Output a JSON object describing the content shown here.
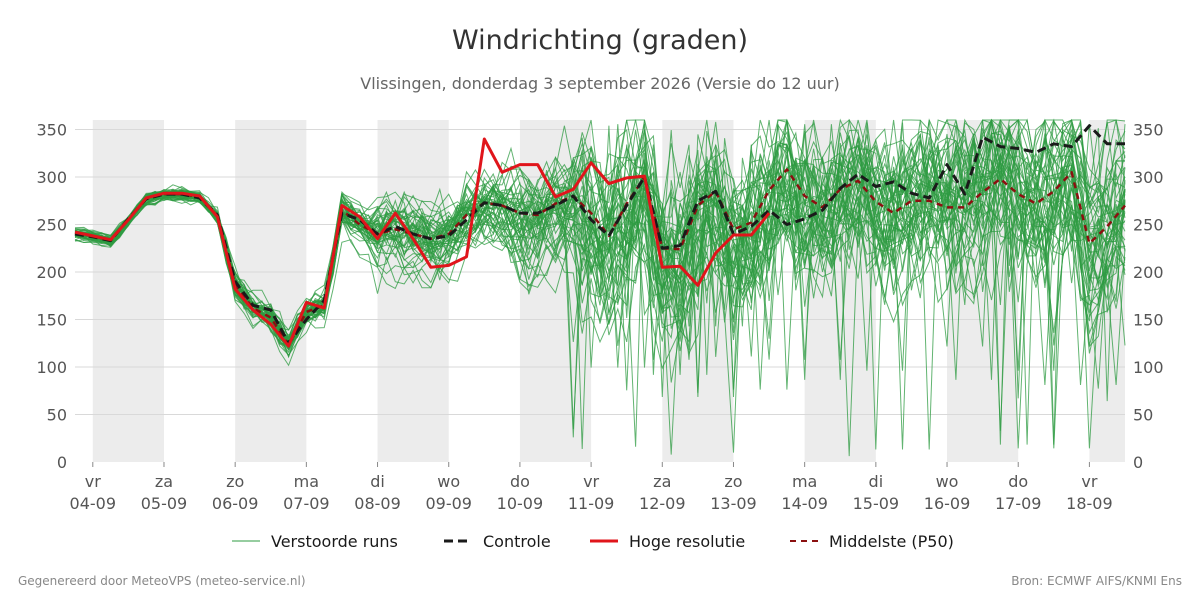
{
  "title": "Windrichting (graden)",
  "subtitle": "Vlissingen, donderdag  3 september 2026 (Versie do 12 uur)",
  "footer_left": "Gegenereerd door MeteoVPS (meteo-service.nl)",
  "footer_right": "Bron: ECMWF AIFS/KNMI Ens",
  "colors": {
    "ensemble": "#2e9b41",
    "control": "#1a1a1a",
    "hires": "#e0151b",
    "median": "#8b1010",
    "weekend_band": "#ececec",
    "grid": "#d9d9d9"
  },
  "chart_data": {
    "type": "line",
    "title": "Windrichting (graden)",
    "ylabel": "",
    "xlabel": "",
    "ylim": [
      0,
      360
    ],
    "yticks": [
      0,
      50,
      100,
      150,
      200,
      250,
      300,
      350
    ],
    "xlim": [
      -0.25,
      14.5
    ],
    "x_unit": "days from 04-09 00:00",
    "x_ticks": [
      {
        "x": 0,
        "day": "vr",
        "date": "04-09"
      },
      {
        "x": 1,
        "day": "za",
        "date": "05-09"
      },
      {
        "x": 2,
        "day": "zo",
        "date": "06-09"
      },
      {
        "x": 3,
        "day": "ma",
        "date": "07-09"
      },
      {
        "x": 4,
        "day": "di",
        "date": "08-09"
      },
      {
        "x": 5,
        "day": "wo",
        "date": "09-09"
      },
      {
        "x": 6,
        "day": "do",
        "date": "10-09"
      },
      {
        "x": 7,
        "day": "vr",
        "date": "11-09"
      },
      {
        "x": 8,
        "day": "za",
        "date": "12-09"
      },
      {
        "x": 9,
        "day": "zo",
        "date": "13-09"
      },
      {
        "x": 10,
        "day": "ma",
        "date": "14-09"
      },
      {
        "x": 11,
        "day": "di",
        "date": "15-09"
      },
      {
        "x": 12,
        "day": "wo",
        "date": "16-09"
      },
      {
        "x": 13,
        "day": "do",
        "date": "17-09"
      },
      {
        "x": 14,
        "day": "vr",
        "date": "18-09"
      }
    ],
    "shaded_bands": [
      [
        0,
        1
      ],
      [
        2,
        3
      ],
      [
        4,
        5
      ],
      [
        6,
        7
      ],
      [
        8,
        9
      ],
      [
        10,
        11
      ],
      [
        12,
        13
      ],
      [
        14,
        14.5
      ]
    ],
    "grid": true,
    "legend_position": "bottom",
    "legend": [
      {
        "key": "ensemble",
        "label": "Verstoorde runs"
      },
      {
        "key": "control",
        "label": "Controle"
      },
      {
        "key": "hires",
        "label": "Hoge resolutie"
      },
      {
        "key": "median",
        "label": "Middelste (P50)"
      }
    ],
    "series": [
      {
        "name": "Hoge resolutie",
        "key": "hires",
        "x": [
          -0.25,
          0,
          0.25,
          0.5,
          0.75,
          1,
          1.25,
          1.5,
          1.75,
          2,
          2.25,
          2.5,
          2.75,
          3,
          3.25,
          3.5,
          3.75,
          4,
          4.25,
          4.5,
          4.75,
          5,
          5.25,
          5.5,
          5.75,
          6,
          6.25,
          6.5,
          6.75,
          7,
          7.25,
          7.5,
          7.75,
          8,
          8.25,
          8.5,
          8.75,
          9,
          9.25,
          9.5
        ],
        "y": [
          242,
          238,
          234,
          255,
          278,
          283,
          283,
          280,
          258,
          182,
          160,
          145,
          122,
          168,
          162,
          270,
          258,
          235,
          262,
          235,
          205,
          207,
          216,
          340,
          305,
          313,
          313,
          279,
          287,
          315,
          293,
          299,
          301,
          205,
          206,
          186,
          220,
          239,
          239,
          262
        ]
      },
      {
        "name": "Controle",
        "key": "control",
        "x": [
          -0.25,
          0,
          0.25,
          0.5,
          0.75,
          1,
          1.25,
          1.5,
          1.75,
          2,
          2.25,
          2.5,
          2.75,
          3,
          3.25,
          3.5,
          3.75,
          4,
          4.25,
          4.5,
          4.75,
          5,
          5.25,
          5.5,
          5.75,
          6,
          6.25,
          6.5,
          6.75,
          7,
          7.25,
          7.5,
          7.75,
          8,
          8.25,
          8.5,
          8.75,
          9,
          9.25,
          9.5,
          9.75,
          10,
          10.25,
          10.5,
          10.75,
          11,
          11.25,
          11.5,
          11.75,
          12,
          12.25,
          12.5,
          12.75,
          13,
          13.25,
          13.5,
          13.75,
          14,
          14.25,
          14.5
        ],
        "y": [
          240,
          237,
          233,
          256,
          277,
          282,
          282,
          278,
          260,
          190,
          165,
          160,
          125,
          150,
          170,
          262,
          255,
          240,
          248,
          240,
          235,
          238,
          255,
          273,
          270,
          262,
          262,
          270,
          280,
          255,
          238,
          270,
          300,
          225,
          228,
          275,
          285,
          240,
          248,
          265,
          250,
          256,
          265,
          288,
          303,
          290,
          295,
          283,
          278,
          313,
          282,
          342,
          332,
          330,
          326,
          335,
          332,
          354,
          335,
          335
        ]
      },
      {
        "name": "Middelste (P50)",
        "key": "median",
        "x": [
          -0.25,
          0,
          0.25,
          0.5,
          0.75,
          1,
          1.25,
          1.5,
          1.75,
          2,
          2.25,
          2.5,
          2.75,
          3,
          3.25,
          3.5,
          3.75,
          4,
          4.25,
          4.5,
          4.75,
          5,
          5.25,
          5.5,
          5.75,
          6,
          6.25,
          6.5,
          6.75,
          7,
          7.25,
          7.5,
          7.75,
          8,
          8.25,
          8.5,
          8.75,
          9,
          9.25,
          9.5,
          9.75,
          10,
          10.25,
          10.5,
          10.75,
          11,
          11.25,
          11.5,
          11.75,
          12,
          12.25,
          12.5,
          12.75,
          13,
          13.25,
          13.5,
          13.75,
          14,
          14.25,
          14.5
        ],
        "y": [
          241,
          238,
          233,
          255,
          277,
          282,
          282,
          279,
          259,
          186,
          162,
          152,
          123,
          158,
          165,
          265,
          250,
          240,
          245,
          240,
          235,
          240,
          260,
          273,
          270,
          262,
          260,
          272,
          280,
          262,
          238,
          272,
          300,
          225,
          224,
          270,
          285,
          245,
          252,
          286,
          308,
          280,
          268,
          287,
          296,
          274,
          262,
          275,
          275,
          268,
          268,
          284,
          298,
          282,
          272,
          285,
          305,
          230,
          248,
          270
        ]
      }
    ],
    "ensemble_members": 50
  }
}
